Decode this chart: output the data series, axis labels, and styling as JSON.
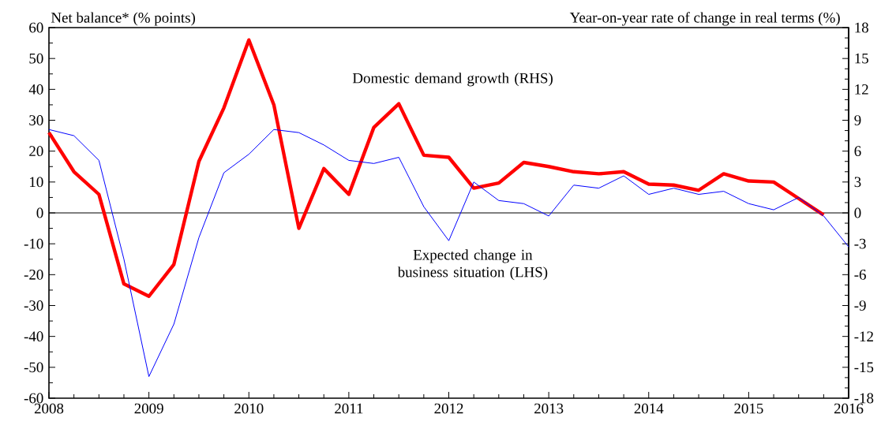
{
  "chart_data": {
    "type": "line",
    "ylabel": "Net balance* (% points)",
    "y2label": "Year-on-year rate of change in real terms (%)",
    "xlim": [
      2008,
      2016
    ],
    "xticks": [
      2008,
      2009,
      2010,
      2011,
      2012,
      2013,
      2014,
      2015,
      2016
    ],
    "ylim": [
      -60,
      60
    ],
    "yticks": [
      -60,
      -50,
      -40,
      -30,
      -20,
      -10,
      0,
      10,
      20,
      30,
      40,
      50,
      60
    ],
    "y2lim": [
      -18,
      18
    ],
    "y2ticks": [
      -18,
      -15,
      -12,
      -9,
      -6,
      -3,
      0,
      3,
      6,
      9,
      12,
      15,
      18
    ],
    "ref_lines": [
      {
        "axis": "y",
        "value": 0,
        "color": "#000000"
      }
    ],
    "series": [
      {
        "name": "Domestic demand growth (RHS)",
        "color": "#ff0000",
        "axis": "y2",
        "x": [
          2008,
          2008.25,
          2008.5,
          2008.75,
          2009,
          2009.25,
          2009.5,
          2009.75,
          2010,
          2010.25,
          2010.5,
          2010.75,
          2011,
          2011.25,
          2011.5,
          2011.75,
          2012,
          2012.25,
          2012.5,
          2012.75,
          2013,
          2013.25,
          2013.5,
          2013.75,
          2014,
          2014.25,
          2014.5,
          2014.75,
          2015,
          2015.25,
          2015.5,
          2015.75
        ],
        "values": [
          7.8,
          4.0,
          1.8,
          -6.9,
          -8.1,
          -5.0,
          5.0,
          10.2,
          16.8,
          10.5,
          -1.5,
          4.3,
          1.8,
          8.3,
          10.6,
          5.6,
          5.4,
          2.4,
          2.9,
          4.9,
          4.5,
          4.0,
          3.8,
          4.0,
          2.8,
          2.7,
          2.2,
          3.8,
          3.1,
          3.0,
          1.4,
          -0.2
        ]
      },
      {
        "name": "Expected change in business situation (LHS)",
        "color": "#0000ff",
        "axis": "y",
        "x": [
          2008,
          2008.25,
          2008.5,
          2008.75,
          2009,
          2009.25,
          2009.5,
          2009.75,
          2010,
          2010.25,
          2010.5,
          2010.75,
          2011,
          2011.25,
          2011.5,
          2011.75,
          2012,
          2012.25,
          2012.5,
          2012.75,
          2013,
          2013.25,
          2013.5,
          2013.75,
          2014,
          2014.25,
          2014.5,
          2014.75,
          2015,
          2015.25,
          2015.5,
          2015.75,
          2016
        ],
        "values": [
          27,
          25,
          17,
          -15,
          -53,
          -36,
          -8,
          13,
          19,
          27,
          26,
          22,
          17,
          16,
          18,
          2,
          -9,
          10,
          4,
          3,
          -1,
          9,
          8,
          12,
          6,
          8,
          6,
          7,
          3,
          1,
          5,
          -1,
          -11
        ]
      }
    ]
  }
}
